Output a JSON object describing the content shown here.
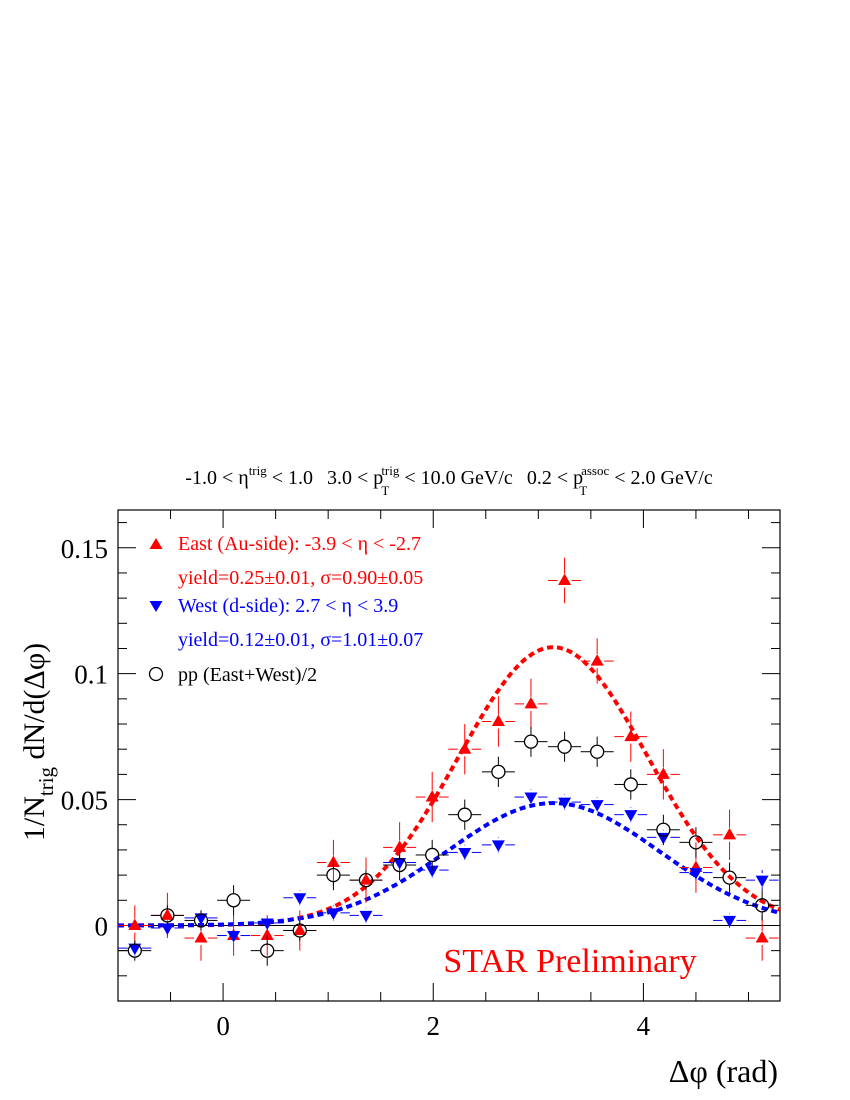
{
  "chart_data": {
    "type": "scatter",
    "title_parts": {
      "eta_lo": "-1.0 < η",
      "eta_sup": "trig",
      "eta_hi": " < 1.0",
      "pt_lo": "3.0 < p",
      "pt_sup": "trig",
      "pt_sub": "T",
      "pt_hi": " < 10.0 GeV/c",
      "assoc_lo": "0.2 < p",
      "assoc_sup": "assoc",
      "assoc_sub": "T",
      "assoc_hi": " < 2.0 GeV/c"
    },
    "xlabel": "Δφ (rad)",
    "ylabel_parts": {
      "a": "1/N",
      "sub": "trig",
      "b": " dN/d(Δφ)"
    },
    "xlim": [
      -1.0,
      5.3
    ],
    "ylim": [
      -0.03,
      0.165
    ],
    "xticks": [
      0,
      2,
      4
    ],
    "yticks": [
      {
        "value": 0,
        "label": "0"
      },
      {
        "value": 0.05,
        "label": "0.05"
      },
      {
        "value": 0.1,
        "label": "0.1"
      },
      {
        "value": 0.15,
        "label": "0.15"
      }
    ],
    "watermark": "STAR Preliminary",
    "legend": {
      "position": "top-left",
      "east_label": "East (Au-side): -3.9 < η < -2.7",
      "east_fit": "yield=0.25±0.01, σ=0.90±0.05",
      "west_label": "West (d-side): 2.7 < η < 3.9",
      "west_fit": "yield=0.12±0.01, σ=1.01±0.07",
      "pp_label": "pp (East+West)/2"
    },
    "series": [
      {
        "name": "East (Au-side)",
        "marker": "triangle-up",
        "color": "#ff0000",
        "points": [
          {
            "x": -0.84,
            "y": 0.0,
            "ey": 0.008
          },
          {
            "x": -0.53,
            "y": 0.004,
            "ey": 0.009
          },
          {
            "x": -0.21,
            "y": -0.005,
            "ey": 0.009
          },
          {
            "x": 0.1,
            "y": -0.004,
            "ey": 0.008
          },
          {
            "x": 0.42,
            "y": -0.004,
            "ey": 0.008
          },
          {
            "x": 0.73,
            "y": -0.002,
            "ey": 0.008
          },
          {
            "x": 1.05,
            "y": 0.025,
            "ey": 0.009
          },
          {
            "x": 1.36,
            "y": 0.018,
            "ey": 0.009
          },
          {
            "x": 1.68,
            "y": 0.031,
            "ey": 0.01
          },
          {
            "x": 1.99,
            "y": 0.051,
            "ey": 0.01
          },
          {
            "x": 2.3,
            "y": 0.07,
            "ey": 0.01
          },
          {
            "x": 2.62,
            "y": 0.081,
            "ey": 0.01
          },
          {
            "x": 2.93,
            "y": 0.088,
            "ey": 0.01
          },
          {
            "x": 3.25,
            "y": 0.137,
            "ey": 0.009
          },
          {
            "x": 3.56,
            "y": 0.105,
            "ey": 0.009
          },
          {
            "x": 3.88,
            "y": 0.075,
            "ey": 0.01
          },
          {
            "x": 4.19,
            "y": 0.06,
            "ey": 0.01
          },
          {
            "x": 4.5,
            "y": 0.023,
            "ey": 0.01
          },
          {
            "x": 4.82,
            "y": 0.036,
            "ey": 0.01
          },
          {
            "x": 5.13,
            "y": -0.005,
            "ey": 0.009
          }
        ]
      },
      {
        "name": "West (d-side)",
        "marker": "triangle-down",
        "color": "#0000ff",
        "points": [
          {
            "x": -0.84,
            "y": -0.009,
            "ey": 0.003
          },
          {
            "x": -0.53,
            "y": -0.001,
            "ey": 0.003
          },
          {
            "x": -0.21,
            "y": 0.003,
            "ey": 0.003
          },
          {
            "x": 0.1,
            "y": -0.004,
            "ey": 0.003
          },
          {
            "x": 0.42,
            "y": 0.001,
            "ey": 0.003
          },
          {
            "x": 0.73,
            "y": 0.011,
            "ey": 0.003
          },
          {
            "x": 1.05,
            "y": 0.005,
            "ey": 0.003
          },
          {
            "x": 1.36,
            "y": 0.004,
            "ey": 0.003
          },
          {
            "x": 1.68,
            "y": 0.025,
            "ey": 0.003
          },
          {
            "x": 1.99,
            "y": 0.022,
            "ey": 0.003
          },
          {
            "x": 2.3,
            "y": 0.029,
            "ey": 0.003
          },
          {
            "x": 2.62,
            "y": 0.032,
            "ey": 0.003
          },
          {
            "x": 2.93,
            "y": 0.051,
            "ey": 0.003
          },
          {
            "x": 3.25,
            "y": 0.049,
            "ey": 0.003
          },
          {
            "x": 3.56,
            "y": 0.048,
            "ey": 0.003
          },
          {
            "x": 3.88,
            "y": 0.044,
            "ey": 0.003
          },
          {
            "x": 4.19,
            "y": 0.035,
            "ey": 0.003
          },
          {
            "x": 4.5,
            "y": 0.021,
            "ey": 0.003
          },
          {
            "x": 4.82,
            "y": 0.002,
            "ey": 0.003
          },
          {
            "x": 5.13,
            "y": 0.018,
            "ey": 0.004
          }
        ]
      },
      {
        "name": "pp (East+West)/2",
        "marker": "open-circle",
        "color": "#000000",
        "points": [
          {
            "x": -0.84,
            "y": -0.01,
            "ey": 0.004
          },
          {
            "x": -0.53,
            "y": 0.004,
            "ey": 0.004
          },
          {
            "x": -0.21,
            "y": 0.002,
            "ey": 0.004
          },
          {
            "x": 0.1,
            "y": 0.01,
            "ey": 0.006
          },
          {
            "x": 0.42,
            "y": -0.01,
            "ey": 0.006
          },
          {
            "x": 0.73,
            "y": -0.002,
            "ey": 0.004
          },
          {
            "x": 1.05,
            "y": 0.02,
            "ey": 0.006
          },
          {
            "x": 1.36,
            "y": 0.018,
            "ey": 0.004
          },
          {
            "x": 1.68,
            "y": 0.024,
            "ey": 0.006
          },
          {
            "x": 1.99,
            "y": 0.028,
            "ey": 0.006
          },
          {
            "x": 2.3,
            "y": 0.044,
            "ey": 0.006
          },
          {
            "x": 2.62,
            "y": 0.061,
            "ey": 0.006
          },
          {
            "x": 2.93,
            "y": 0.073,
            "ey": 0.006
          },
          {
            "x": 3.25,
            "y": 0.071,
            "ey": 0.006
          },
          {
            "x": 3.56,
            "y": 0.069,
            "ey": 0.006
          },
          {
            "x": 3.88,
            "y": 0.056,
            "ey": 0.006
          },
          {
            "x": 4.19,
            "y": 0.038,
            "ey": 0.006
          },
          {
            "x": 4.5,
            "y": 0.033,
            "ey": 0.006
          },
          {
            "x": 4.82,
            "y": 0.019,
            "ey": 0.006
          },
          {
            "x": 5.13,
            "y": 0.008,
            "ey": 0.006
          }
        ]
      }
    ],
    "fits": [
      {
        "name": "East fit",
        "color": "#ff0000",
        "amplitude": 0.1105,
        "mean": 3.1416,
        "sigma": 0.9
      },
      {
        "name": "West fit",
        "color": "#0000ff",
        "amplitude": 0.0486,
        "mean": 3.1416,
        "sigma": 1.01
      }
    ]
  }
}
